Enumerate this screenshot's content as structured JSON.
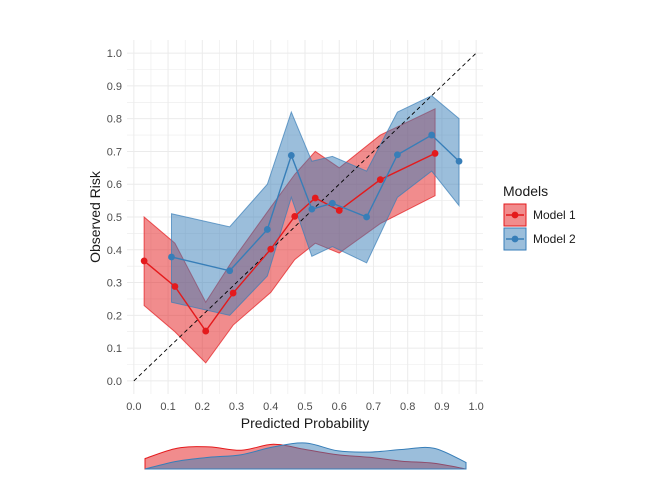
{
  "chart_data": {
    "type": "line",
    "xlabel": "Predicted Probability",
    "ylabel": "Observed Risk",
    "xlim": [
      -0.02,
      1.02
    ],
    "ylim": [
      -0.04,
      1.04
    ],
    "xticks": [
      "0.0",
      "0.1",
      "0.2",
      "0.3",
      "0.4",
      "0.5",
      "0.6",
      "0.7",
      "0.8",
      "0.9",
      "1.0"
    ],
    "yticks": [
      "0.0",
      "0.1",
      "0.2",
      "0.3",
      "0.4",
      "0.5",
      "0.6",
      "0.7",
      "0.8",
      "0.9",
      "1.0"
    ],
    "grid": true,
    "reference_line": {
      "from": [
        0,
        0
      ],
      "to": [
        1,
        1
      ],
      "style": "dashed"
    },
    "legend": {
      "title": "Models",
      "placement": "right"
    },
    "series": [
      {
        "name": "Model 1",
        "color": "#e41a1c",
        "x": [
          0.03,
          0.12,
          0.21,
          0.29,
          0.4,
          0.47,
          0.53,
          0.6,
          0.72,
          0.88
        ],
        "y": [
          0.366,
          0.288,
          0.152,
          0.268,
          0.402,
          0.502,
          0.558,
          0.52,
          0.614,
          0.694
        ],
        "lower": [
          0.23,
          0.15,
          0.055,
          0.17,
          0.27,
          0.37,
          0.42,
          0.39,
          0.48,
          0.565
        ],
        "upper": [
          0.5,
          0.42,
          0.24,
          0.37,
          0.53,
          0.63,
          0.7,
          0.65,
          0.75,
          0.83
        ]
      },
      {
        "name": "Model 2",
        "color": "#377eb8",
        "x": [
          0.11,
          0.28,
          0.39,
          0.46,
          0.52,
          0.58,
          0.68,
          0.77,
          0.87,
          0.95
        ],
        "y": [
          0.378,
          0.336,
          0.462,
          0.688,
          0.524,
          0.542,
          0.5,
          0.69,
          0.75,
          0.67
        ],
        "lower": [
          0.24,
          0.2,
          0.32,
          0.56,
          0.38,
          0.41,
          0.36,
          0.56,
          0.64,
          0.535
        ],
        "upper": [
          0.51,
          0.47,
          0.6,
          0.82,
          0.67,
          0.685,
          0.64,
          0.82,
          0.87,
          0.8
        ]
      }
    ],
    "distribution": {
      "type": "area",
      "x": [
        0.0,
        0.1,
        0.2,
        0.3,
        0.4,
        0.5,
        0.6,
        0.7,
        0.8,
        0.9,
        1.0
      ],
      "series": [
        {
          "name": "Model 1",
          "density": [
            0.4,
            0.8,
            0.85,
            0.72,
            0.95,
            0.75,
            0.55,
            0.45,
            0.3,
            0.22,
            0.0
          ]
        },
        {
          "name": "Model 2",
          "density": [
            0.0,
            0.3,
            0.45,
            0.55,
            0.85,
            1.0,
            0.7,
            0.65,
            0.75,
            0.8,
            0.25
          ]
        }
      ]
    }
  }
}
